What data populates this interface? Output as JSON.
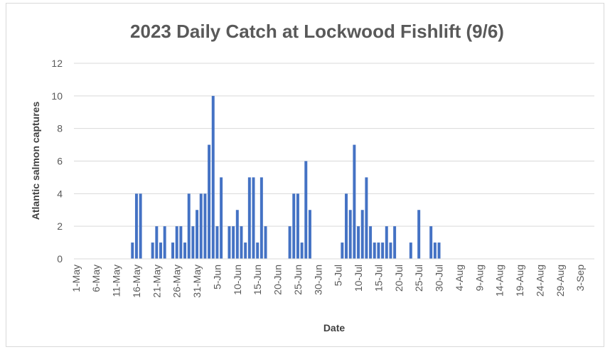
{
  "chart_data": {
    "type": "bar",
    "title": "2023 Daily Catch at Lockwood Fishlift (9/6)",
    "xlabel": "Date",
    "ylabel": "Atlantic salmon captures",
    "ylim": [
      0,
      12
    ],
    "y_ticks": [
      "0",
      "2",
      "4",
      "6",
      "8",
      "10",
      "12"
    ],
    "x_tick_labels": [
      "1-May",
      "6-May",
      "11-May",
      "16-May",
      "21-May",
      "26-May",
      "31-May",
      "5-Jun",
      "10-Jun",
      "15-Jun",
      "20-Jun",
      "25-Jun",
      "30-Jun",
      "5-Jul",
      "10-Jul",
      "15-Jul",
      "20-Jul",
      "25-Jul",
      "30-Jul",
      "4-Aug",
      "9-Aug",
      "14-Aug",
      "19-Aug",
      "24-Aug",
      "29-Aug",
      "3-Sep"
    ],
    "grid": "horizontal",
    "legend": "none",
    "bar_color": "#4472c4",
    "x_start": "1-May",
    "x_end": "6-Sep",
    "series": [
      {
        "x": [
          "15-May",
          "16-May",
          "17-May",
          "18-May",
          "20-May",
          "21-May",
          "22-May",
          "23-May",
          "25-May",
          "26-May",
          "27-May",
          "28-May",
          "29-May",
          "30-May",
          "31-May",
          "1-Jun",
          "2-Jun",
          "3-Jun",
          "4-Jun",
          "5-Jun",
          "6-Jun",
          "7-Jun",
          "8-Jun",
          "9-Jun",
          "10-Jun",
          "11-Jun",
          "12-Jun",
          "13-Jun",
          "14-Jun",
          "15-Jun",
          "16-Jun",
          "17-Jun",
          "18-Jun",
          "23-Jun",
          "24-Jun",
          "25-Jun",
          "26-Jun",
          "27-Jun",
          "28-Jun",
          "29-Jun",
          "30-Jun",
          "6-Jul",
          "7-Jul",
          "8-Jul",
          "9-Jul",
          "10-Jul",
          "11-Jul",
          "12-Jul",
          "13-Jul",
          "14-Jul",
          "15-Jul",
          "16-Jul",
          "17-Jul",
          "18-Jul",
          "19-Jul",
          "23-Jul",
          "25-Jul",
          "28-Jul",
          "29-Jul",
          "30-Jul"
        ],
        "values": [
          1,
          4,
          4,
          0,
          1,
          2,
          1,
          2,
          1,
          2,
          2,
          1,
          4,
          2,
          3,
          4,
          4,
          7,
          10,
          2,
          5,
          0,
          2,
          2,
          3,
          2,
          1,
          5,
          5,
          1,
          5,
          2,
          0,
          2,
          4,
          4,
          1,
          6,
          3,
          0,
          0,
          1,
          4,
          3,
          7,
          2,
          3,
          5,
          2,
          1,
          1,
          1,
          2,
          1,
          2,
          1,
          3,
          2,
          1,
          1
        ]
      }
    ]
  }
}
